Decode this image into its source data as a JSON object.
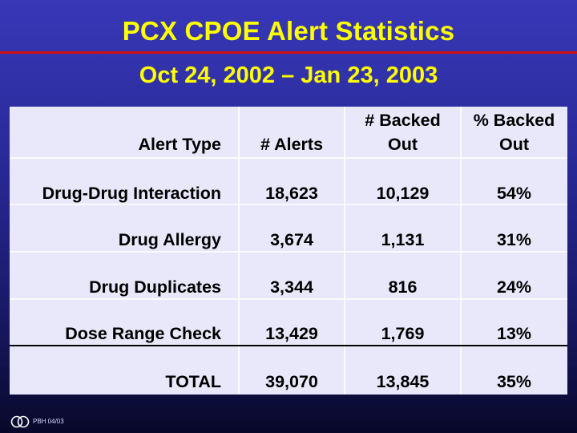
{
  "slide": {
    "title": "PCX CPOE Alert Statistics",
    "subtitle": "Oct 24, 2002 – Jan 23, 2003",
    "footer": "PBH 04/03",
    "logo_icon": "two-overlapping-circles-logo",
    "colors": {
      "title": "#ffff00",
      "rule": "#d01010",
      "table_bg": "#e8e8fa"
    }
  },
  "table": {
    "headers": {
      "alert_type": "Alert Type",
      "alerts": "# Alerts",
      "backed_line1": "# Backed",
      "backed_line2": "Out",
      "pct_line1": "% Backed",
      "pct_line2": "Out"
    },
    "rows": [
      {
        "type": "Drug-Drug Interaction",
        "alerts": "18,623",
        "backed": "10,129",
        "pct": "54%"
      },
      {
        "type": "Drug Allergy",
        "alerts": "3,674",
        "backed": "1,131",
        "pct": "31%"
      },
      {
        "type": "Drug Duplicates",
        "alerts": "3,344",
        "backed": "816",
        "pct": "24%"
      },
      {
        "type": "Dose Range Check",
        "alerts": "13,429",
        "backed": "1,769",
        "pct": "13%"
      },
      {
        "type": "TOTAL",
        "alerts": "39,070",
        "backed": "13,845",
        "pct": "35%"
      }
    ]
  }
}
